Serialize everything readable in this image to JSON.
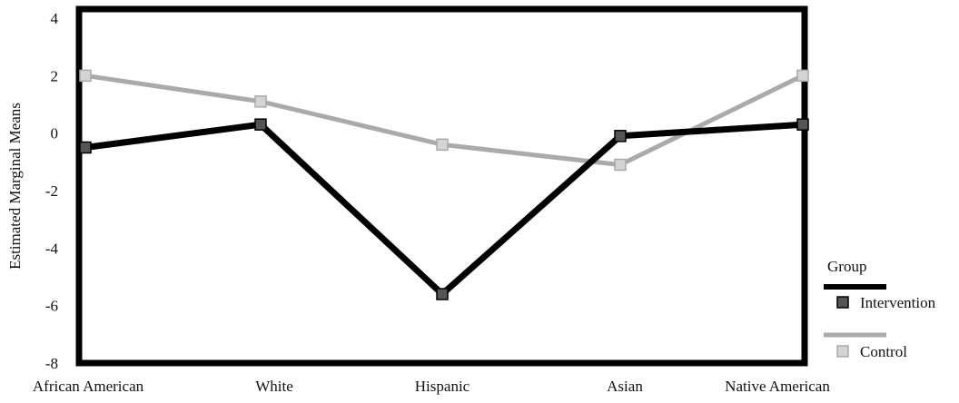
{
  "chart_data": {
    "type": "line",
    "title": "",
    "xlabel": "",
    "ylabel": "Estimated Marginal Means",
    "categories": [
      "African American",
      "White",
      "Hispanic",
      "Asian",
      "Native American"
    ],
    "y_ticks": [
      "4",
      "2",
      "0",
      "-2",
      "-4",
      "-6",
      "-8"
    ],
    "y_tick_values": [
      4,
      2,
      0,
      -2,
      -4,
      -6,
      -8
    ],
    "ylim": [
      -8,
      4
    ],
    "grid": false,
    "legend": {
      "title": "Group",
      "position": "bottom-right outside"
    },
    "series": [
      {
        "name": "Intervention",
        "values": [
          -0.5,
          0.3,
          -5.6,
          -0.1,
          0.3
        ],
        "line_color": "#000000",
        "marker_color": "#555555"
      },
      {
        "name": "Control",
        "values": [
          2.0,
          1.1,
          -0.4,
          -1.1,
          2.0
        ],
        "line_color": "#aaaaaa",
        "marker_color": "#d4d4d4"
      }
    ]
  }
}
